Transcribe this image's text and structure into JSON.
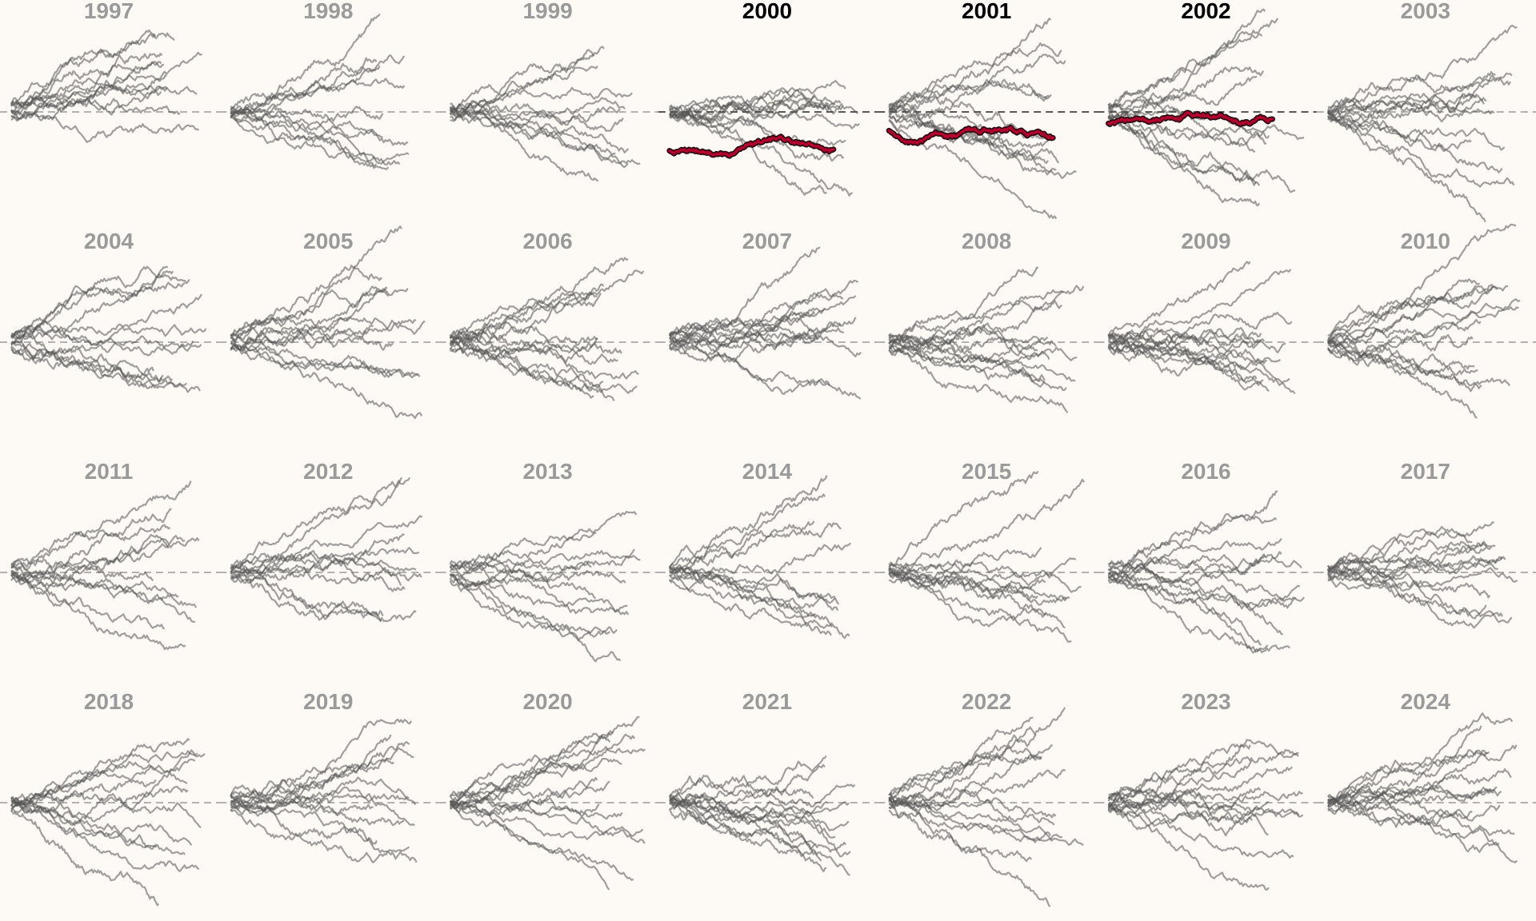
{
  "chart_data": {
    "type": "line",
    "title": "",
    "xlabel": "",
    "ylabel": "",
    "grid": false,
    "legend": "none",
    "layout": {
      "columns": 7,
      "rows": 4
    },
    "colors": {
      "background": "#fdf9f4",
      "line": "#555555",
      "title_muted": "#9a9a9a",
      "title_highlight": "#000000",
      "highlight_line": "#b3002d",
      "baseline": "#888888",
      "baseline_highlight": "#222222"
    },
    "panels": [
      {
        "year": "1997",
        "highlight": false
      },
      {
        "year": "1998",
        "highlight": false
      },
      {
        "year": "1999",
        "highlight": false
      },
      {
        "year": "2000",
        "highlight": true,
        "highlight_series": {
          "start": -1.35,
          "end": -1.3
        }
      },
      {
        "year": "2001",
        "highlight": true,
        "highlight_series": {
          "start": -0.65,
          "end": -0.9
        }
      },
      {
        "year": "2002",
        "highlight": true,
        "highlight_series": {
          "start": -0.4,
          "end": -0.25
        }
      },
      {
        "year": "2003",
        "highlight": false
      },
      {
        "year": "2004",
        "highlight": false
      },
      {
        "year": "2005",
        "highlight": false
      },
      {
        "year": "2006",
        "highlight": false
      },
      {
        "year": "2007",
        "highlight": false
      },
      {
        "year": "2008",
        "highlight": false
      },
      {
        "year": "2009",
        "highlight": false
      },
      {
        "year": "2010",
        "highlight": false
      },
      {
        "year": "2011",
        "highlight": false
      },
      {
        "year": "2012",
        "highlight": false
      },
      {
        "year": "2013",
        "highlight": false
      },
      {
        "year": "2014",
        "highlight": false
      },
      {
        "year": "2015",
        "highlight": false
      },
      {
        "year": "2016",
        "highlight": false
      },
      {
        "year": "2017",
        "highlight": false
      },
      {
        "year": "2018",
        "highlight": false
      },
      {
        "year": "2019",
        "highlight": false
      },
      {
        "year": "2020",
        "highlight": false
      },
      {
        "year": "2021",
        "highlight": false
      },
      {
        "year": "2022",
        "highlight": false
      },
      {
        "year": "2023",
        "highlight": false
      },
      {
        "year": "2024",
        "highlight": false
      }
    ]
  }
}
